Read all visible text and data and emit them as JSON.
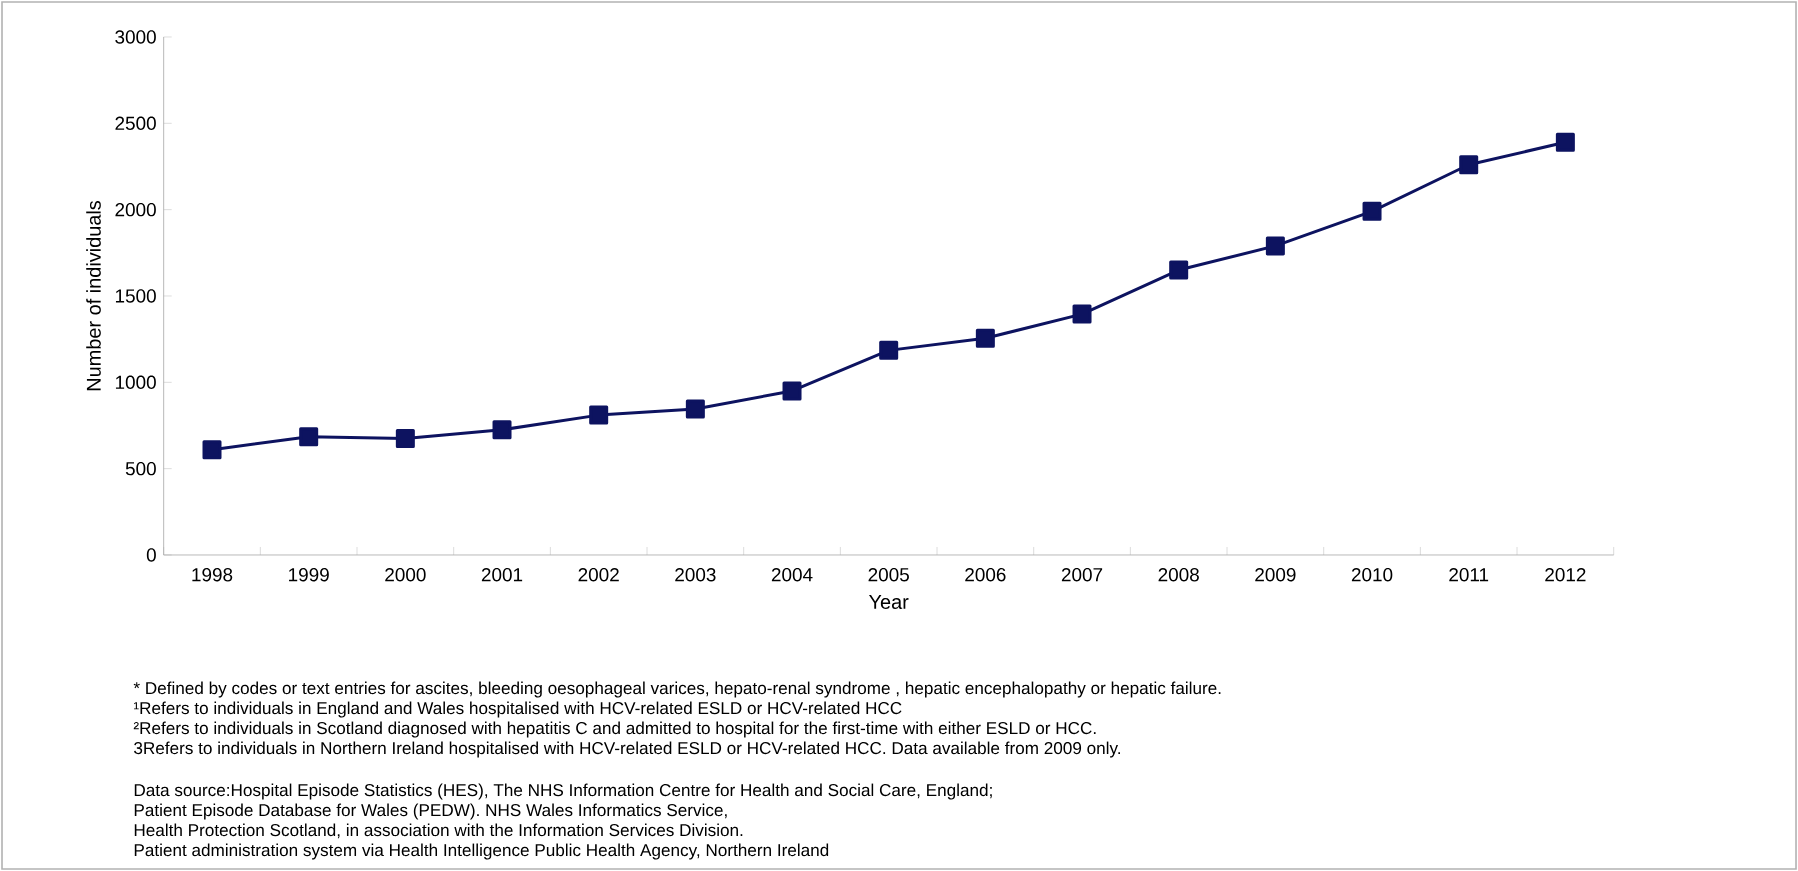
{
  "chart_data": {
    "type": "line",
    "xlabel": "Year",
    "ylabel": "Number of individuals",
    "categories": [
      "1998",
      "1999",
      "2000",
      "2001",
      "2002",
      "2003",
      "2004",
      "2005",
      "2006",
      "2007",
      "2008",
      "2009",
      "2010",
      "2011",
      "2012"
    ],
    "values": [
      610,
      685,
      675,
      725,
      810,
      845,
      950,
      1185,
      1255,
      1395,
      1650,
      1790,
      1990,
      2260,
      2390
    ],
    "color": "#0d1360",
    "marker": "square",
    "line_style": "solid",
    "grid": false,
    "ylim": [
      0,
      3000
    ],
    "yticks": [
      0,
      500,
      1000,
      1500,
      2000,
      2500,
      3000
    ],
    "annotations": [
      "* Defined by codes or text entries for ascites, bleeding oesophageal varices, hepato-renal syndrome , hepatic encephalopathy or hepatic failure.",
      "¹Refers to individuals in England and Wales hospitalised with HCV-related ESLD or HCV-related HCC",
      "²Refers to individuals in Scotland diagnosed with hepatitis C and admitted to hospital for the first-time with either ESLD or HCC.",
      "3Refers to individuals in Northern Ireland hospitalised with HCV-related ESLD or HCV-related HCC. Data available from 2009 only.",
      "Data source:Hospital Episode Statistics (HES), The NHS Information Centre for Health and Social Care, England;",
      "Patient Episode Database for Wales (PEDW).  NHS Wales Informatics Service,",
      "Health Protection Scotland, in association with the Information Services Division.",
      "Patient administration system via Health Intelligence Public Health Agency, Northern Ireland"
    ]
  }
}
